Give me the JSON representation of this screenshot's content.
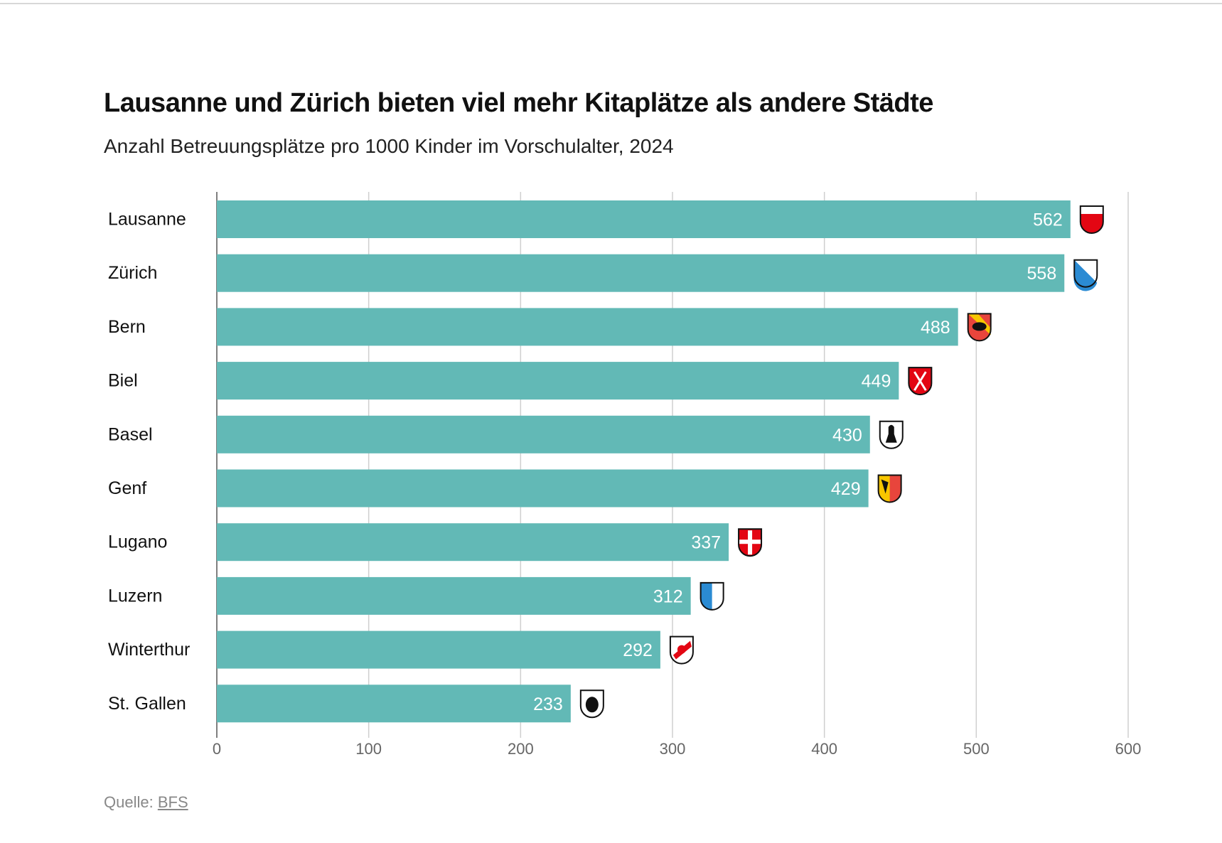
{
  "title": "Lausanne und Zürich bieten viel mehr Kitaplätze als andere Städte",
  "subtitle": "Anzahl Betreuungsplätze pro 1000 Kinder im Vorschulalter, 2024",
  "source": {
    "label": "Quelle:",
    "link": "BFS"
  },
  "chart_data": {
    "type": "bar",
    "orientation": "horizontal",
    "categories": [
      "Lausanne",
      "Zürich",
      "Bern",
      "Biel",
      "Basel",
      "Genf",
      "Lugano",
      "Luzern",
      "Winterthur",
      "St. Gallen"
    ],
    "values": [
      562,
      558,
      488,
      449,
      430,
      429,
      337,
      312,
      292,
      233
    ],
    "icons": [
      "coat-of-arms-lausanne",
      "coat-of-arms-zurich",
      "coat-of-arms-bern",
      "coat-of-arms-biel",
      "coat-of-arms-basel",
      "coat-of-arms-genf",
      "coat-of-arms-lugano",
      "coat-of-arms-luzern",
      "coat-of-arms-winterthur",
      "coat-of-arms-st-gallen"
    ],
    "xlim": [
      0,
      600
    ],
    "xticks": [
      "0",
      "100",
      "200",
      "300",
      "400",
      "500",
      "600"
    ],
    "grid": true,
    "bar_color": "#62b9b6"
  }
}
